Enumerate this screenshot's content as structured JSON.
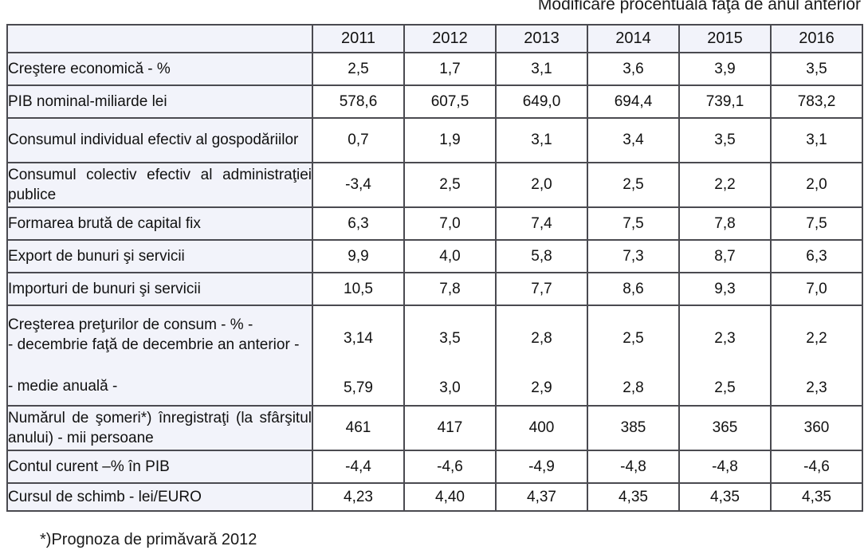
{
  "title": "Modificare procentuală faţă de anul anterior",
  "footnote": "*)Prognoza de primăvară 2012",
  "table": {
    "year_headers": [
      "2011",
      "2012",
      "2013",
      "2014",
      "2015",
      "2016"
    ],
    "rows": [
      {
        "label": "Creştere economică - %",
        "values": [
          "2,5",
          "1,7",
          "3,1",
          "3,6",
          "3,9",
          "3,5"
        ]
      },
      {
        "label": "PIB nominal-miliarde lei",
        "values": [
          "578,6",
          "607,5",
          "649,0",
          "694,4",
          "739,1",
          "783,2"
        ]
      },
      {
        "label": "Consumul individual efectiv al gospodăriilor",
        "values": [
          "0,7",
          "1,9",
          "3,1",
          "3,4",
          "3,5",
          "3,1"
        ]
      },
      {
        "label": "Consumul colectiv efectiv al administraţiei publice",
        "values": [
          "-3,4",
          "2,5",
          "2,0",
          "2,5",
          "2,2",
          "2,0"
        ]
      },
      {
        "label": "Formarea brută de capital fix",
        "values": [
          "6,3",
          "7,0",
          "7,4",
          "7,5",
          "7,8",
          "7,5"
        ]
      },
      {
        "label": "Export de bunuri şi servicii",
        "values": [
          "9,9",
          "4,0",
          "5,8",
          "7,3",
          "8,7",
          "6,3"
        ]
      },
      {
        "label": "Importuri de bunuri şi servicii",
        "values": [
          "10,5",
          "7,8",
          "7,7",
          "8,6",
          "9,3",
          "7,0"
        ]
      },
      {
        "label": "Numărul de şomeri*) înregistraţi (la sfârşitul anului) - mii persoane",
        "values": [
          "461",
          "417",
          "400",
          "385",
          "365",
          "360"
        ]
      },
      {
        "label": "Contul curent –% în PIB",
        "values": [
          "-4,4",
          "-4,6",
          "-4,9",
          "-4,8",
          "-4,8",
          "-4,6"
        ]
      },
      {
        "label": "Cursul de schimb - lei/EURO",
        "values": [
          "4,23",
          "4,40",
          "4,37",
          "4,35",
          "4,35",
          "4,35"
        ]
      }
    ],
    "price_row": {
      "line1": "Creşterea preţurilor de consum - % -",
      "line2": "- decembrie faţă de decembrie an anterior -",
      "line3": "- medie anuală -",
      "dec_values": [
        "3,14",
        "3,5",
        "2,8",
        "2,5",
        "2,3",
        "2,2"
      ],
      "avg_values": [
        "5,79",
        "3,0",
        "2,9",
        "2,8",
        "2,5",
        "2,3"
      ]
    }
  }
}
